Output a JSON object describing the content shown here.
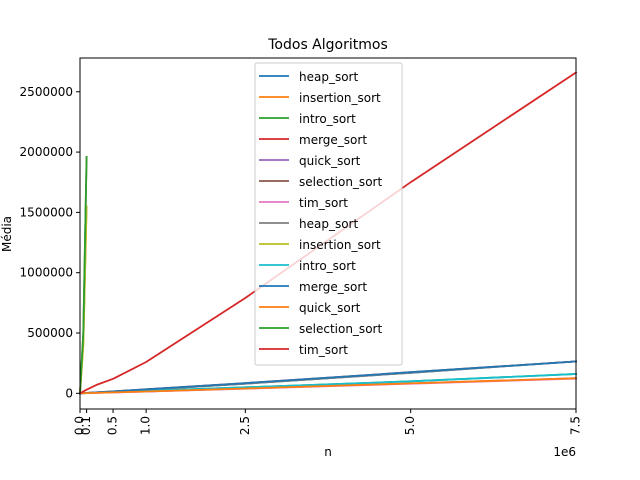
{
  "chart_data": {
    "type": "line",
    "title": "Todos Algoritmos",
    "xlabel": "n",
    "ylabel": "Média",
    "x_offset_label": "1e6",
    "xlim": [
      0,
      7500000
    ],
    "ylim": [
      -130000,
      2780000
    ],
    "x_ticks": [
      {
        "value": 0,
        "label": "0.0"
      },
      {
        "value": 100000,
        "label": "0.1"
      },
      {
        "value": 500000,
        "label": "0.5"
      },
      {
        "value": 1000000,
        "label": "1.0"
      },
      {
        "value": 2500000,
        "label": "2.5"
      },
      {
        "value": 5000000,
        "label": "5.0"
      },
      {
        "value": 7500000,
        "label": "7.5"
      }
    ],
    "y_ticks": [
      {
        "value": 0,
        "label": "0"
      },
      {
        "value": 500000,
        "label": "500000"
      },
      {
        "value": 1000000,
        "label": "1000000"
      },
      {
        "value": 1500000,
        "label": "1500000"
      },
      {
        "value": 2000000,
        "label": "2000000"
      },
      {
        "value": 2500000,
        "label": "2500000"
      }
    ],
    "legend_position": "top-center",
    "grid": false,
    "series": [
      {
        "name": "heap_sort",
        "color": "#1f77b4",
        "x": [
          0,
          100000,
          500000,
          1000000,
          2500000,
          5000000,
          7500000
        ],
        "y": [
          0,
          3000,
          15000,
          30000,
          80000,
          170000,
          265000
        ]
      },
      {
        "name": "insertion_sort",
        "color": "#ff7f0e",
        "x": [
          0,
          50000,
          100000
        ],
        "y": [
          0,
          400000,
          1550000
        ]
      },
      {
        "name": "intro_sort",
        "color": "#2ca02c",
        "x": [
          0,
          100000,
          500000,
          1000000,
          2500000,
          5000000,
          7500000
        ],
        "y": [
          0,
          2000,
          10000,
          20000,
          50000,
          100000,
          160000
        ]
      },
      {
        "name": "merge_sort",
        "color": "#d62728",
        "x": [
          0,
          100000,
          500000,
          1000000,
          2500000,
          5000000,
          7500000
        ],
        "y": [
          0,
          3500,
          16000,
          33000,
          85000,
          175000,
          265000
        ]
      },
      {
        "name": "quick_sort",
        "color": "#9467bd",
        "x": [
          0,
          100000,
          500000,
          1000000,
          2500000,
          5000000,
          7500000
        ],
        "y": [
          0,
          1500,
          7500,
          15000,
          40000,
          82000,
          125000
        ]
      },
      {
        "name": "selection_sort",
        "color": "#8c564b",
        "x": [
          0,
          50000,
          100000
        ],
        "y": [
          0,
          500000,
          1960000
        ]
      },
      {
        "name": "tim_sort",
        "color": "#e377c2",
        "x": [
          0,
          100000,
          500000,
          1000000,
          2500000,
          5000000,
          7500000
        ],
        "y": [
          0,
          1500,
          7000,
          14000,
          38000,
          80000,
          122000
        ]
      },
      {
        "name": "heap_sort",
        "color": "#7f7f7f",
        "x": [
          0,
          100000,
          500000,
          1000000,
          2500000,
          5000000,
          7500000
        ],
        "y": [
          0,
          3000,
          15000,
          30000,
          80000,
          170000,
          265000
        ]
      },
      {
        "name": "insertion_sort",
        "color": "#bcbd22",
        "x": [
          0,
          50000,
          100000
        ],
        "y": [
          0,
          400000,
          1550000
        ]
      },
      {
        "name": "intro_sort",
        "color": "#17becf",
        "x": [
          0,
          100000,
          500000,
          1000000,
          2500000,
          5000000,
          7500000
        ],
        "y": [
          0,
          2000,
          10000,
          20000,
          50000,
          100000,
          160000
        ]
      },
      {
        "name": "merge_sort",
        "color": "#1f77b4",
        "x": [
          0,
          100000,
          500000,
          1000000,
          2500000,
          5000000,
          7500000
        ],
        "y": [
          0,
          3500,
          16000,
          33000,
          85000,
          175000,
          265000
        ]
      },
      {
        "name": "quick_sort",
        "color": "#ff7f0e",
        "x": [
          0,
          100000,
          500000,
          1000000,
          2500000,
          5000000,
          7500000
        ],
        "y": [
          0,
          1500,
          7500,
          15000,
          40000,
          82000,
          125000
        ]
      },
      {
        "name": "selection_sort",
        "color": "#2ca02c",
        "x": [
          0,
          50000,
          100000
        ],
        "y": [
          0,
          500000,
          1960000
        ]
      },
      {
        "name": "tim_sort",
        "color": "#d62728",
        "x": [
          0,
          100000,
          250000,
          500000,
          750000,
          1000000,
          2500000,
          5000000,
          7500000
        ],
        "y": [
          0,
          30000,
          70000,
          120000,
          190000,
          260000,
          790000,
          1750000,
          2660000
        ]
      }
    ]
  }
}
